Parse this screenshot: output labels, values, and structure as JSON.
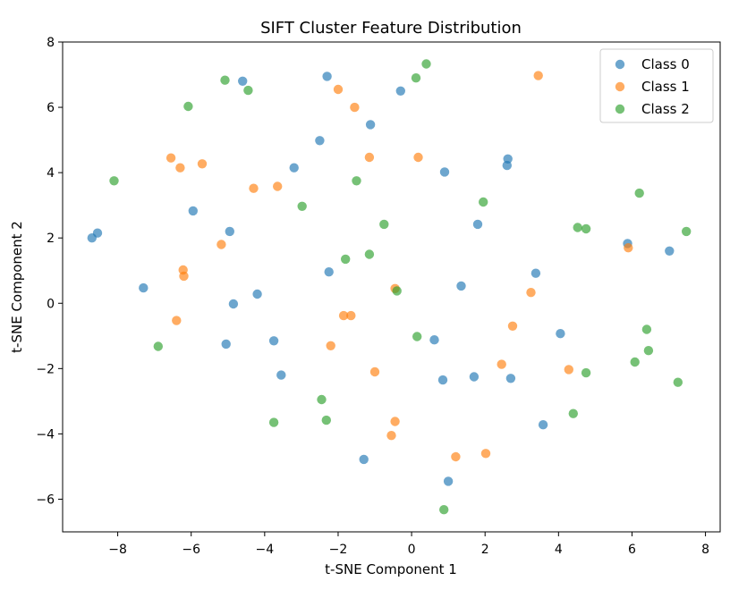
{
  "chart_data": {
    "type": "scatter",
    "title": "SIFT Cluster Feature Distribution",
    "xlabel": "t-SNE Component 1",
    "ylabel": "t-SNE Component 2",
    "xlim": [
      -9.5,
      8.4
    ],
    "ylim": [
      -7.0,
      8.0
    ],
    "xticks": [
      -8,
      -6,
      -4,
      -2,
      0,
      2,
      4,
      6,
      8
    ],
    "yticks": [
      -6,
      -4,
      -2,
      0,
      2,
      4,
      6,
      8
    ],
    "grid": false,
    "legend_position": "top-right",
    "marker_alpha": 0.65,
    "series": [
      {
        "name": "Class 0",
        "color": "#1f77b4",
        "points": [
          [
            -8.7,
            2.0
          ],
          [
            -8.55,
            2.15
          ],
          [
            -7.3,
            0.47
          ],
          [
            -5.95,
            2.83
          ],
          [
            -4.95,
            2.2
          ],
          [
            -4.6,
            6.8
          ],
          [
            -5.05,
            -1.25
          ],
          [
            -4.85,
            -0.02
          ],
          [
            -4.2,
            0.28
          ],
          [
            -3.75,
            -1.15
          ],
          [
            -3.55,
            -2.2
          ],
          [
            -3.2,
            4.15
          ],
          [
            -2.5,
            4.98
          ],
          [
            -2.3,
            6.95
          ],
          [
            -2.25,
            0.96
          ],
          [
            -1.3,
            -4.78
          ],
          [
            -1.12,
            5.47
          ],
          [
            -0.3,
            6.5
          ],
          [
            0.62,
            -1.12
          ],
          [
            0.85,
            -2.35
          ],
          [
            0.9,
            4.02
          ],
          [
            1.0,
            -5.45
          ],
          [
            1.35,
            0.53
          ],
          [
            1.7,
            -2.25
          ],
          [
            1.8,
            2.42
          ],
          [
            2.6,
            4.22
          ],
          [
            2.62,
            4.42
          ],
          [
            2.7,
            -2.3
          ],
          [
            3.38,
            0.92
          ],
          [
            3.58,
            -3.72
          ],
          [
            4.05,
            -0.93
          ],
          [
            5.88,
            1.83
          ],
          [
            7.02,
            1.6
          ]
        ]
      },
      {
        "name": "Class 1",
        "color": "#ff7f0e",
        "points": [
          [
            -6.55,
            4.45
          ],
          [
            -6.3,
            4.15
          ],
          [
            -6.22,
            1.02
          ],
          [
            -6.2,
            0.83
          ],
          [
            -6.4,
            -0.53
          ],
          [
            -5.7,
            4.27
          ],
          [
            -5.18,
            1.8
          ],
          [
            -4.3,
            3.52
          ],
          [
            -3.65,
            3.58
          ],
          [
            -2.2,
            -1.3
          ],
          [
            -2.0,
            6.55
          ],
          [
            -1.85,
            -0.38
          ],
          [
            -1.65,
            -0.38
          ],
          [
            -1.55,
            6.0
          ],
          [
            -1.15,
            4.47
          ],
          [
            -1.0,
            -2.1
          ],
          [
            -0.55,
            -4.05
          ],
          [
            -0.45,
            -3.62
          ],
          [
            -0.45,
            0.45
          ],
          [
            0.18,
            4.47
          ],
          [
            1.2,
            -4.7
          ],
          [
            2.02,
            -4.6
          ],
          [
            2.45,
            -1.87
          ],
          [
            2.75,
            -0.7
          ],
          [
            3.25,
            0.33
          ],
          [
            3.45,
            6.97
          ],
          [
            4.28,
            -2.03
          ],
          [
            5.9,
            1.7
          ]
        ]
      },
      {
        "name": "Class 2",
        "color": "#2ca02c",
        "points": [
          [
            -8.1,
            3.75
          ],
          [
            -6.9,
            -1.32
          ],
          [
            -6.08,
            6.03
          ],
          [
            -5.08,
            6.83
          ],
          [
            -4.45,
            6.52
          ],
          [
            -3.75,
            -3.65
          ],
          [
            -2.98,
            2.97
          ],
          [
            -2.45,
            -2.95
          ],
          [
            -2.32,
            -3.58
          ],
          [
            -1.8,
            1.35
          ],
          [
            -1.5,
            3.75
          ],
          [
            -1.15,
            1.5
          ],
          [
            -0.75,
            2.42
          ],
          [
            -0.4,
            0.38
          ],
          [
            0.12,
            6.9
          ],
          [
            0.15,
            -1.02
          ],
          [
            0.4,
            7.33
          ],
          [
            0.88,
            -6.32
          ],
          [
            1.95,
            3.1
          ],
          [
            4.4,
            -3.38
          ],
          [
            4.52,
            2.32
          ],
          [
            4.75,
            2.28
          ],
          [
            4.75,
            -2.13
          ],
          [
            6.08,
            -1.8
          ],
          [
            6.2,
            3.37
          ],
          [
            6.4,
            -0.8
          ],
          [
            6.45,
            -1.45
          ],
          [
            7.25,
            -2.42
          ],
          [
            7.48,
            2.2
          ]
        ]
      }
    ]
  }
}
